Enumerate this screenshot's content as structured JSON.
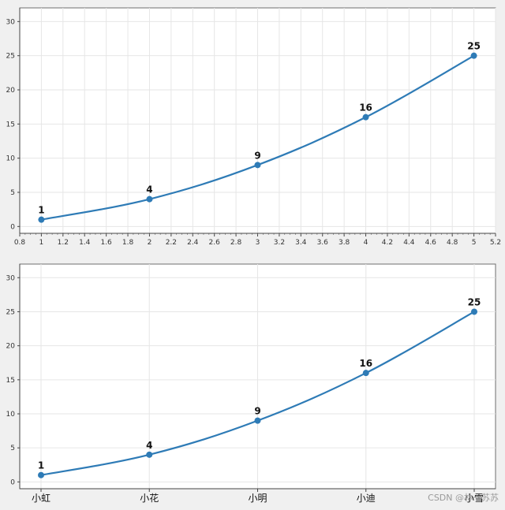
{
  "chart_data": [
    {
      "type": "line",
      "x": [
        1,
        2,
        3,
        4,
        5
      ],
      "series": [
        {
          "values": [
            1,
            4,
            9,
            16,
            25
          ]
        }
      ],
      "data_labels": [
        "1",
        "4",
        "9",
        "16",
        "25"
      ],
      "xlim": [
        0.8,
        5.2
      ],
      "ylim": [
        -1,
        32
      ],
      "x_ticks": [
        "0.8",
        "1",
        "1.2",
        "1.4",
        "1.6",
        "1.8",
        "2",
        "2.2",
        "2.4",
        "2.6",
        "2.8",
        "3",
        "3.2",
        "3.4",
        "3.6",
        "3.8",
        "4",
        "4.2",
        "4.4",
        "4.6",
        "4.8",
        "5",
        "5.2"
      ],
      "y_ticks": [
        "0",
        "5",
        "10",
        "15",
        "20",
        "25",
        "30"
      ],
      "grid": true,
      "smooth": true,
      "color": "#2e7bb6"
    },
    {
      "type": "line",
      "categories": [
        "小虹",
        "小花",
        "小明",
        "小迪",
        "小雪"
      ],
      "series": [
        {
          "values": [
            1,
            4,
            9,
            16,
            25
          ]
        }
      ],
      "data_labels": [
        "1",
        "4",
        "9",
        "16",
        "25"
      ],
      "ylim": [
        -1,
        32
      ],
      "y_ticks": [
        "0",
        "5",
        "10",
        "15",
        "20",
        "25",
        "30"
      ],
      "grid": true,
      "smooth": true,
      "color": "#2e7bb6"
    }
  ],
  "watermark": "CSDN @林一苏苏"
}
